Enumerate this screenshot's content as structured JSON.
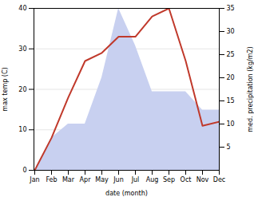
{
  "chart_data": {
    "type": "line",
    "categories": [
      "Jan",
      "Feb",
      "Mar",
      "Apr",
      "May",
      "Jun",
      "Jul",
      "Aug",
      "Sep",
      "Oct",
      "Nov",
      "Dec"
    ],
    "series": [
      {
        "type": "area",
        "color": "#c8d0f0",
        "axis": "y2",
        "values": [
          0,
          7,
          10,
          10,
          20,
          35,
          27,
          17,
          17,
          17,
          13,
          13
        ]
      },
      {
        "type": "line",
        "color": "#c0392b",
        "values": [
          0,
          8,
          18,
          27,
          29,
          33,
          33,
          38,
          40,
          27,
          11,
          12
        ]
      }
    ],
    "xlabel": "date (month)",
    "ylabel": "max temp (C)",
    "y2label": "med. precipitation (kg/m2)",
    "ylim": [
      0,
      40
    ],
    "yticks": [
      0,
      10,
      20,
      30,
      40
    ],
    "y2lim": [
      0,
      35
    ],
    "y2ticks": [
      5,
      10,
      15,
      20,
      25,
      30,
      35
    ],
    "grid": true
  }
}
